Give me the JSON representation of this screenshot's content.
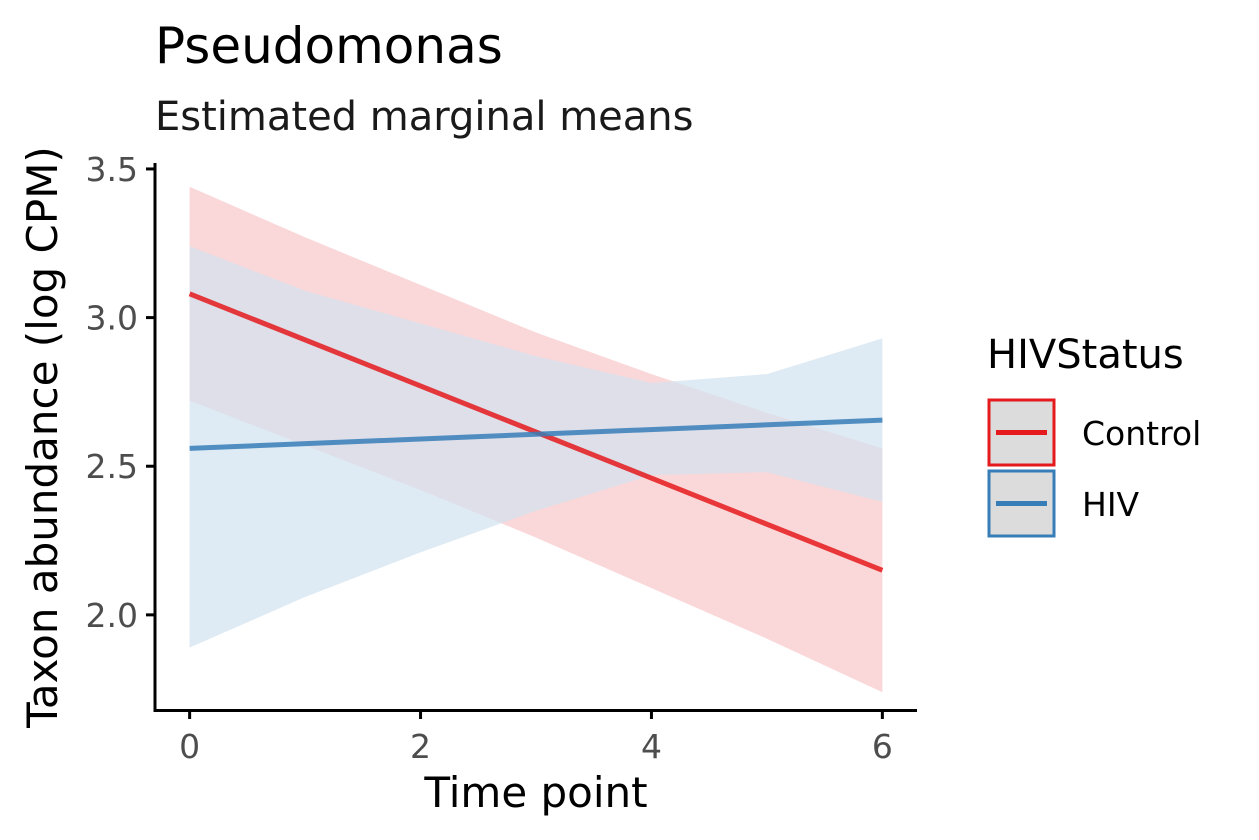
{
  "chart_data": {
    "type": "line",
    "title": "Pseudomonas",
    "subtitle": "Estimated marginal means",
    "xlabel": "Time point",
    "ylabel": "Taxon abundance (log CPM)",
    "xlim": [
      -0.3,
      6.3
    ],
    "ylim": [
      1.68,
      3.52
    ],
    "x_ticks": [
      0,
      2,
      4,
      6
    ],
    "x_tick_labels": [
      "0",
      "2",
      "4",
      "6"
    ],
    "y_ticks": [
      2.0,
      2.5,
      3.0,
      3.5
    ],
    "y_tick_labels": [
      "2.0",
      "2.5",
      "3.0",
      "3.5"
    ],
    "grid": false,
    "legend": {
      "title": "HIVStatus",
      "position": "right"
    },
    "series": [
      {
        "name": "Control",
        "color": "#e41a1c",
        "band_color": "#f8c8ca",
        "x": [
          0,
          6
        ],
        "y": [
          3.08,
          2.15
        ],
        "band_x": [
          0,
          1,
          2,
          3,
          4,
          5,
          6
        ],
        "band_lower": [
          2.72,
          2.57,
          2.42,
          2.26,
          2.09,
          1.92,
          1.74
        ],
        "band_upper": [
          3.44,
          3.27,
          3.11,
          2.95,
          2.81,
          2.68,
          2.56
        ]
      },
      {
        "name": "HIV",
        "color": "#377eb8",
        "band_color": "#d2e2f0",
        "x": [
          0,
          6
        ],
        "y": [
          2.56,
          2.655
        ],
        "band_x": [
          0,
          1,
          2,
          3,
          4,
          5,
          6
        ],
        "band_lower": [
          1.89,
          2.06,
          2.21,
          2.35,
          2.47,
          2.48,
          2.38
        ],
        "band_upper": [
          3.24,
          3.09,
          2.98,
          2.87,
          2.78,
          2.81,
          2.93
        ]
      }
    ]
  }
}
